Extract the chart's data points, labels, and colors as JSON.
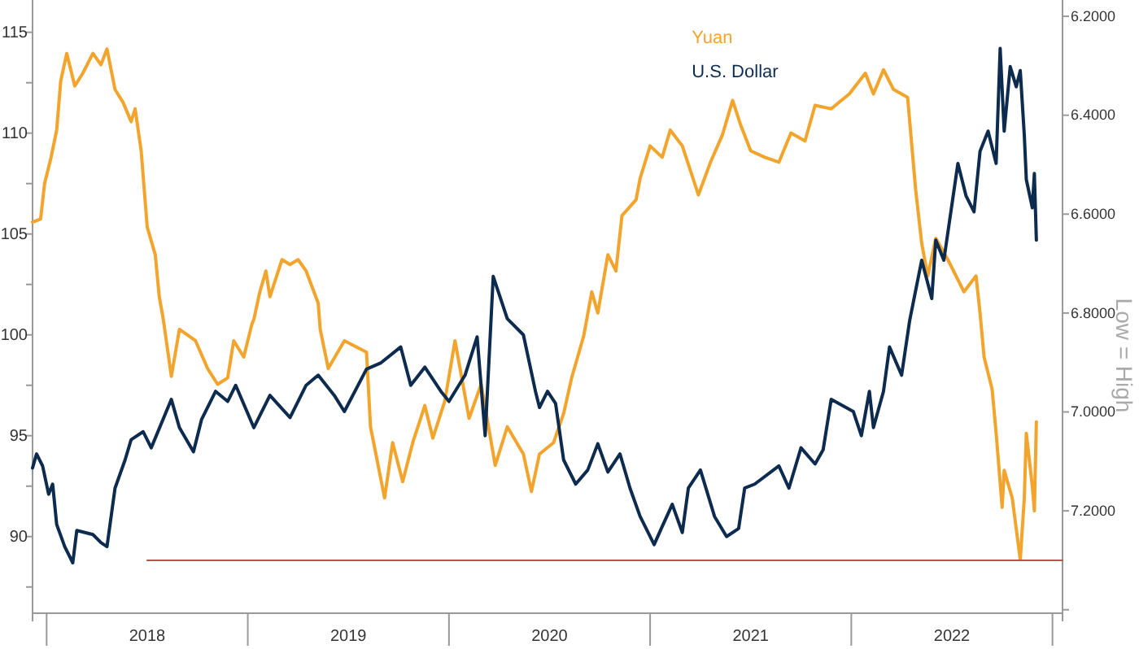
{
  "chart_data": {
    "type": "line",
    "ylabel": null,
    "y2label": "Low = High",
    "legend": "top",
    "xlim": [
      2017.93,
      2023.05
    ],
    "xticks": [
      {
        "value": 2018,
        "label": null
      },
      {
        "value": 2018.5,
        "label": "2018"
      },
      {
        "value": 2019,
        "label": null
      },
      {
        "value": 2019.5,
        "label": "2019"
      },
      {
        "value": 2020,
        "label": null
      },
      {
        "value": 2020.5,
        "label": "2020"
      },
      {
        "value": 2021,
        "label": null
      },
      {
        "value": 2021.5,
        "label": "2021"
      },
      {
        "value": 2022,
        "label": null
      },
      {
        "value": 2022.5,
        "label": "2022"
      },
      {
        "value": 2023,
        "label": null
      }
    ],
    "ylim": [
      86.2,
      116.6
    ],
    "yticks": [
      {
        "value": 87.5,
        "label": null
      },
      90,
      {
        "value": 92.5,
        "label": null
      },
      95,
      {
        "value": 97.5,
        "label": null
      },
      100,
      {
        "value": 102.5,
        "label": null
      },
      105,
      {
        "value": 107.5,
        "label": null
      },
      110,
      {
        "value": 112.5,
        "label": null
      },
      115
    ],
    "y2lim": [
      7.407,
      6.167
    ],
    "y2ticks": [
      {
        "value": 6.2,
        "label": "6.2000"
      },
      {
        "value": 6.4,
        "label": "6.4000"
      },
      {
        "value": 6.6,
        "label": "6.6000"
      },
      {
        "value": 6.8,
        "label": "6.8000"
      },
      {
        "value": 7.0,
        "label": "7.0000"
      },
      {
        "value": 7.2,
        "label": "7.2000"
      },
      {
        "value": 7.4,
        "label": null
      }
    ],
    "grid": false,
    "series": [
      {
        "name": "Yuan",
        "color": "#f2a42c",
        "axis": "y2",
        "x": [
          2017.93,
          2017.97,
          2017.99,
          2018.02,
          2018.05,
          2018.07,
          2018.1,
          2018.14,
          2018.18,
          2018.23,
          2018.27,
          2018.3,
          2018.34,
          2018.38,
          2018.42,
          2018.44,
          2018.47,
          2018.5,
          2018.54,
          2018.56,
          2018.58,
          2018.62,
          2018.66,
          2018.74,
          2018.8,
          2018.85,
          2018.9,
          2018.93,
          2018.98,
          2019.02,
          2019.03,
          2019.06,
          2019.09,
          2019.11,
          2019.17,
          2019.21,
          2019.25,
          2019.29,
          2019.35,
          2019.36,
          2019.4,
          2019.48,
          2019.59,
          2019.61,
          2019.68,
          2019.72,
          2019.77,
          2019.82,
          2019.88,
          2019.92,
          2019.98,
          2020.03,
          2020.1,
          2020.16,
          2020.23,
          2020.29,
          2020.37,
          2020.41,
          2020.45,
          2020.52,
          2020.57,
          2020.61,
          2020.67,
          2020.71,
          2020.74,
          2020.79,
          2020.83,
          2020.86,
          2020.93,
          2020.95,
          2021.0,
          2021.06,
          2021.1,
          2021.16,
          2021.24,
          2021.3,
          2021.36,
          2021.41,
          2021.45,
          2021.5,
          2021.57,
          2021.64,
          2021.7,
          2021.77,
          2021.82,
          2021.9,
          2021.99,
          2022.07,
          2022.11,
          2022.16,
          2022.21,
          2022.28,
          2022.32,
          2022.35,
          2022.38,
          2022.42,
          2022.48,
          2022.56,
          2022.62,
          2022.64,
          2022.66,
          2022.7,
          2022.72,
          2022.75,
          2022.76,
          2022.8,
          2022.84,
          2022.86,
          2022.87,
          2022.9,
          2022.91,
          2022.92
        ],
        "values": [
          6.616,
          6.61,
          6.538,
          6.489,
          6.43,
          6.331,
          6.275,
          6.341,
          6.315,
          6.275,
          6.298,
          6.266,
          6.348,
          6.374,
          6.413,
          6.387,
          6.472,
          6.626,
          6.682,
          6.767,
          6.813,
          6.928,
          6.833,
          6.856,
          6.912,
          6.944,
          6.931,
          6.856,
          6.889,
          6.823,
          6.813,
          6.757,
          6.715,
          6.767,
          6.692,
          6.702,
          6.692,
          6.715,
          6.78,
          6.833,
          6.912,
          6.856,
          6.879,
          7.03,
          7.174,
          7.062,
          7.141,
          7.062,
          6.987,
          7.053,
          6.977,
          6.856,
          7.013,
          6.944,
          7.108,
          7.03,
          7.085,
          7.161,
          7.085,
          7.062,
          7.003,
          6.931,
          6.846,
          6.757,
          6.8,
          6.682,
          6.715,
          6.603,
          6.571,
          6.528,
          6.462,
          6.485,
          6.43,
          6.462,
          6.561,
          6.495,
          6.439,
          6.37,
          6.42,
          6.472,
          6.485,
          6.495,
          6.436,
          6.452,
          6.38,
          6.387,
          6.357,
          6.315,
          6.357,
          6.308,
          6.348,
          6.364,
          6.551,
          6.659,
          6.725,
          6.649,
          6.692,
          6.757,
          6.725,
          6.8,
          6.889,
          6.954,
          7.043,
          7.193,
          7.118,
          7.174,
          7.299,
          7.174,
          7.043,
          7.151,
          7.2,
          7.02
        ]
      },
      {
        "name": "U.S. Dollar",
        "color": "#0d2b4e",
        "x": [
          2017.93,
          2017.95,
          2017.98,
          2018.01,
          2018.03,
          2018.05,
          2018.09,
          2018.13,
          2018.15,
          2018.23,
          2018.27,
          2018.3,
          2018.34,
          2018.39,
          2018.42,
          2018.48,
          2018.52,
          2018.62,
          2018.66,
          2018.73,
          2018.77,
          2018.84,
          2018.9,
          2018.94,
          2019.03,
          2019.11,
          2019.21,
          2019.29,
          2019.35,
          2019.43,
          2019.48,
          2019.59,
          2019.66,
          2019.76,
          2019.81,
          2019.88,
          2019.96,
          2020.0,
          2020.08,
          2020.14,
          2020.18,
          2020.22,
          2020.29,
          2020.37,
          2020.43,
          2020.45,
          2020.49,
          2020.53,
          2020.57,
          2020.63,
          2020.69,
          2020.74,
          2020.79,
          2020.85,
          2020.9,
          2020.95,
          2021.02,
          2021.06,
          2021.11,
          2021.16,
          2021.19,
          2021.25,
          2021.32,
          2021.38,
          2021.44,
          2021.47,
          2021.52,
          2021.64,
          2021.69,
          2021.75,
          2021.82,
          2021.86,
          2021.9,
          2022.01,
          2022.05,
          2022.09,
          2022.11,
          2022.16,
          2022.19,
          2022.25,
          2022.29,
          2022.35,
          2022.4,
          2022.42,
          2022.46,
          2022.53,
          2022.57,
          2022.61,
          2022.64,
          2022.68,
          2022.72,
          2022.74,
          2022.76,
          2022.79,
          2022.82,
          2022.84,
          2022.86,
          2022.87,
          2022.9,
          2022.91,
          2022.92
        ],
        "values": [
          93.4,
          94.1,
          93.5,
          92.1,
          92.6,
          90.6,
          89.5,
          88.7,
          90.3,
          90.1,
          89.7,
          89.5,
          92.4,
          93.8,
          94.8,
          95.2,
          94.4,
          96.8,
          95.4,
          94.2,
          95.8,
          97.2,
          96.7,
          97.5,
          95.4,
          97.0,
          95.9,
          97.5,
          98.0,
          97.0,
          96.2,
          98.3,
          98.6,
          99.4,
          97.5,
          98.4,
          97.2,
          96.7,
          98.0,
          99.9,
          95.0,
          102.9,
          100.8,
          100.0,
          97.2,
          96.4,
          97.2,
          96.6,
          93.8,
          92.6,
          93.3,
          94.6,
          93.2,
          94.1,
          92.4,
          91.0,
          89.6,
          90.5,
          91.6,
          90.2,
          92.4,
          93.3,
          91.0,
          90.0,
          90.4,
          92.4,
          92.6,
          93.5,
          92.4,
          94.4,
          93.6,
          94.3,
          96.8,
          96.2,
          95.0,
          97.2,
          95.4,
          97.2,
          99.4,
          98.0,
          100.7,
          103.7,
          101.8,
          104.7,
          103.7,
          108.5,
          106.9,
          106.1,
          109.1,
          110.1,
          108.5,
          114.2,
          110.1,
          113.3,
          112.3,
          113.1,
          109.9,
          107.7,
          106.3,
          108.0,
          104.7
        ]
      },
      {
        "color": "#c0504d",
        "axis": "y2",
        "x": [
          2018.5,
          2023.05
        ],
        "values": [
          7.3,
          7.3
        ]
      }
    ]
  }
}
